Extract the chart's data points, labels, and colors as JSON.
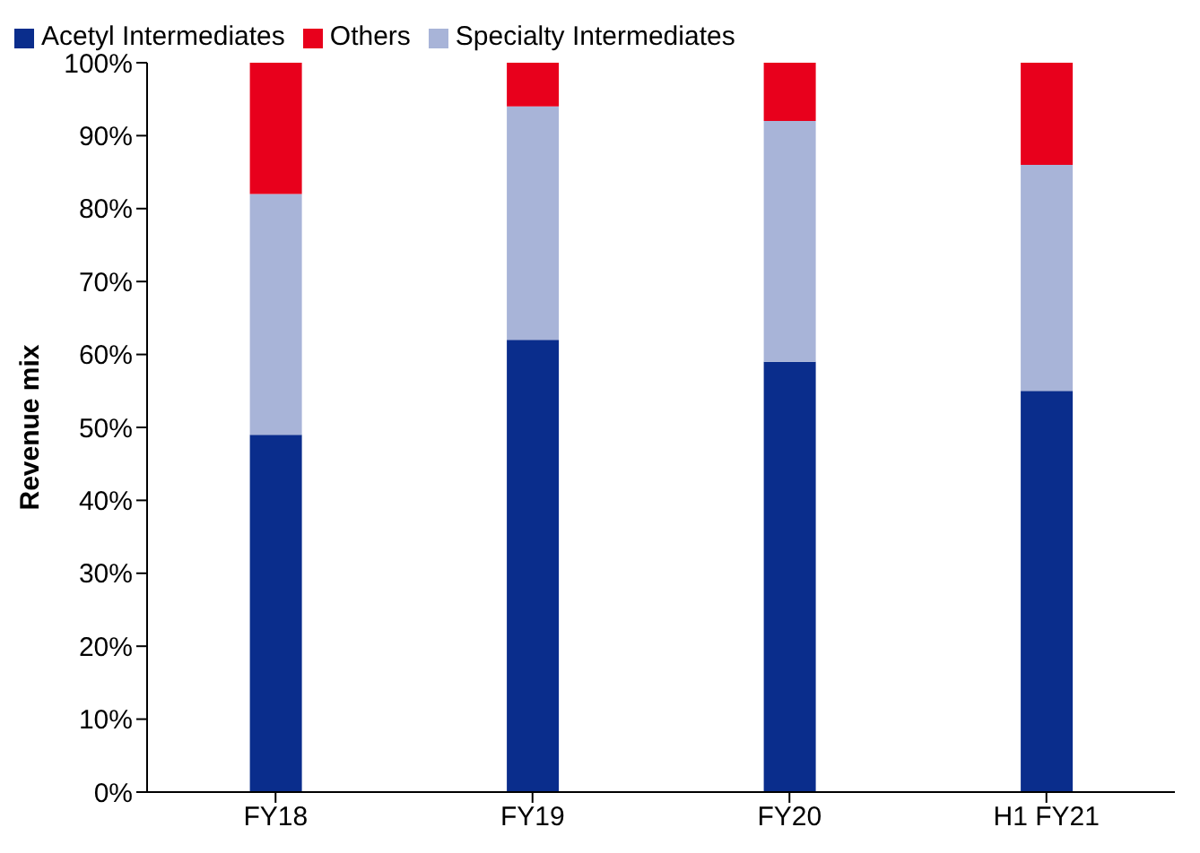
{
  "chart_data": {
    "type": "bar",
    "stacked": true,
    "ylabel": "Revenue mix",
    "categories": [
      "FY18",
      "FY19",
      "FY20",
      "H1 FY21"
    ],
    "series": [
      {
        "name": "Acetyl Intermediates",
        "color": "#0a2d8c",
        "values": [
          49,
          62,
          59,
          55
        ]
      },
      {
        "name": "Specialty Intermediates",
        "color": "#a8b4d8",
        "values": [
          33,
          32,
          33,
          31
        ]
      },
      {
        "name": "Others",
        "color": "#e8001c",
        "values": [
          18,
          6,
          8,
          14
        ]
      }
    ],
    "ylim": [
      0,
      100
    ],
    "yticks": [
      {
        "value": 0,
        "label": "0%"
      },
      {
        "value": 10,
        "label": "10%"
      },
      {
        "value": 20,
        "label": "20%"
      },
      {
        "value": 30,
        "label": "30%"
      },
      {
        "value": 40,
        "label": "40%"
      },
      {
        "value": 50,
        "label": "50%"
      },
      {
        "value": 60,
        "label": "60%"
      },
      {
        "value": 70,
        "label": "70%"
      },
      {
        "value": 80,
        "label": "80%"
      },
      {
        "value": 90,
        "label": "90%"
      },
      {
        "value": 100,
        "label": "100%"
      }
    ],
    "grid": false,
    "legend": "top left"
  }
}
